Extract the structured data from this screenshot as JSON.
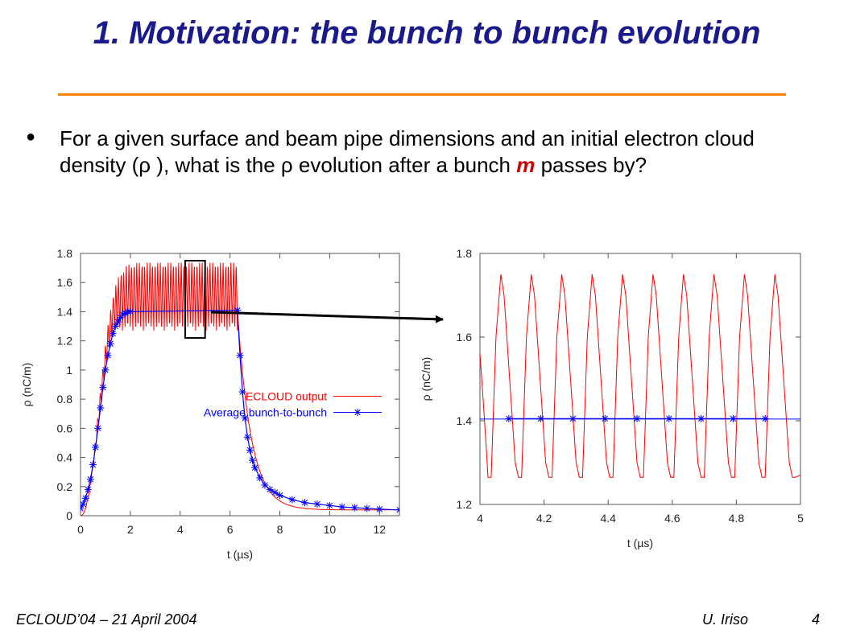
{
  "slide": {
    "title": "1. Motivation: the bunch to bunch evolution",
    "bullet": {
      "part1": "For a given surface and beam pipe dimensions and an initial electron cloud density (",
      "rho1": "ρ",
      "part2": " ), what is the ",
      "rho2": "ρ",
      "part3": " evolution after a bunch ",
      "m": "m",
      "part4": " passes by?"
    },
    "footer_left": "ECLOUD’04 – 21 April 2004",
    "footer_author": "U. Iriso",
    "footer_page": "4"
  },
  "colors": {
    "title": "#1a1a8c",
    "rule": "#ff7f00",
    "ecloud": "#ff0000",
    "average": "#0000ff"
  },
  "chart_data": [
    {
      "type": "line",
      "xlabel": "t (µs)",
      "ylabel": "ρ (nC/m)",
      "xlim": [
        0,
        12.8
      ],
      "ylim": [
        0,
        1.8
      ],
      "xticks": [
        "0",
        "2",
        "4",
        "6",
        "8",
        "10",
        "12"
      ],
      "yticks": [
        "0",
        "0.2",
        "0.4",
        "0.6",
        "0.8",
        "1",
        "1.2",
        "1.4",
        "1.6",
        "1.8"
      ],
      "legend_position": "center-right",
      "series": [
        {
          "name": "ECLOUD output",
          "style": "line",
          "color": "#ff0000",
          "envelope": {
            "rise_start": 0.0,
            "rise_end": 1.6,
            "flat_end": 6.3,
            "decay_end": 12.8,
            "flat_max": 1.75,
            "flat_min": 1.27,
            "decay_floor": 0.04,
            "period": 0.105
          }
        },
        {
          "name": "Average bunch-to-bunch",
          "style": "line+star",
          "color": "#0000ff",
          "points": [
            [
              0.0,
              0.05
            ],
            [
              0.1,
              0.08
            ],
            [
              0.2,
              0.12
            ],
            [
              0.3,
              0.18
            ],
            [
              0.4,
              0.25
            ],
            [
              0.5,
              0.35
            ],
            [
              0.6,
              0.47
            ],
            [
              0.7,
              0.6
            ],
            [
              0.8,
              0.74
            ],
            [
              0.9,
              0.88
            ],
            [
              1.0,
              1.0
            ],
            [
              1.1,
              1.1
            ],
            [
              1.2,
              1.18
            ],
            [
              1.3,
              1.25
            ],
            [
              1.4,
              1.3
            ],
            [
              1.5,
              1.33
            ],
            [
              1.6,
              1.36
            ],
            [
              1.7,
              1.38
            ],
            [
              1.8,
              1.39
            ],
            [
              1.9,
              1.4
            ],
            [
              2.0,
              1.4
            ],
            [
              6.3,
              1.41
            ],
            [
              6.4,
              1.1
            ],
            [
              6.5,
              0.85
            ],
            [
              6.6,
              0.67
            ],
            [
              6.7,
              0.54
            ],
            [
              6.8,
              0.45
            ],
            [
              6.9,
              0.38
            ],
            [
              7.0,
              0.33
            ],
            [
              7.2,
              0.26
            ],
            [
              7.4,
              0.21
            ],
            [
              7.6,
              0.18
            ],
            [
              7.8,
              0.16
            ],
            [
              8.0,
              0.14
            ],
            [
              8.5,
              0.11
            ],
            [
              9.0,
              0.09
            ],
            [
              9.5,
              0.08
            ],
            [
              10.0,
              0.07
            ],
            [
              10.5,
              0.06
            ],
            [
              11.0,
              0.055
            ],
            [
              11.5,
              0.05
            ],
            [
              12.0,
              0.045
            ],
            [
              12.8,
              0.04
            ]
          ]
        }
      ],
      "highlight_box": {
        "x": [
          4.2,
          5.0
        ],
        "y": [
          1.22,
          1.75
        ]
      }
    },
    {
      "type": "line",
      "xlabel": "t (µs)",
      "ylabel": "ρ (nC/m)",
      "xlim": [
        4,
        5
      ],
      "ylim": [
        1.2,
        1.8
      ],
      "xticks": [
        "4",
        "4.2",
        "4.4",
        "4.6",
        "4.8",
        "5"
      ],
      "yticks": [
        "1.2",
        "1.4",
        "1.6",
        "1.8"
      ],
      "series": [
        {
          "name": "ECLOUD output",
          "style": "line",
          "color": "#ff0000",
          "points": [
            [
              4.0,
              1.56
            ],
            [
              4.01,
              1.45
            ],
            [
              4.02,
              1.33
            ],
            [
              4.025,
              1.265
            ],
            [
              4.035,
              1.265
            ],
            [
              4.05,
              1.6
            ],
            [
              4.065,
              1.75
            ],
            [
              4.075,
              1.7
            ],
            [
              4.11,
              1.3
            ],
            [
              4.12,
              1.265
            ],
            [
              4.13,
              1.265
            ],
            [
              4.145,
              1.6
            ],
            [
              4.16,
              1.75
            ],
            [
              4.17,
              1.7
            ],
            [
              4.205,
              1.3
            ],
            [
              4.215,
              1.265
            ],
            [
              4.225,
              1.265
            ],
            [
              4.24,
              1.6
            ],
            [
              4.255,
              1.75
            ],
            [
              4.265,
              1.7
            ],
            [
              4.3,
              1.3
            ],
            [
              4.31,
              1.265
            ],
            [
              4.32,
              1.265
            ],
            [
              4.335,
              1.6
            ],
            [
              4.35,
              1.75
            ],
            [
              4.36,
              1.7
            ],
            [
              4.395,
              1.3
            ],
            [
              4.405,
              1.265
            ],
            [
              4.415,
              1.265
            ],
            [
              4.43,
              1.6
            ],
            [
              4.445,
              1.75
            ],
            [
              4.455,
              1.7
            ],
            [
              4.49,
              1.3
            ],
            [
              4.5,
              1.265
            ],
            [
              4.51,
              1.265
            ],
            [
              4.525,
              1.6
            ],
            [
              4.54,
              1.75
            ],
            [
              4.55,
              1.7
            ],
            [
              4.585,
              1.3
            ],
            [
              4.595,
              1.265
            ],
            [
              4.605,
              1.265
            ],
            [
              4.62,
              1.6
            ],
            [
              4.635,
              1.75
            ],
            [
              4.645,
              1.7
            ],
            [
              4.68,
              1.3
            ],
            [
              4.69,
              1.265
            ],
            [
              4.7,
              1.265
            ],
            [
              4.715,
              1.6
            ],
            [
              4.73,
              1.75
            ],
            [
              4.74,
              1.7
            ],
            [
              4.775,
              1.3
            ],
            [
              4.785,
              1.265
            ],
            [
              4.795,
              1.265
            ],
            [
              4.81,
              1.6
            ],
            [
              4.825,
              1.75
            ],
            [
              4.835,
              1.7
            ],
            [
              4.87,
              1.3
            ],
            [
              4.88,
              1.265
            ],
            [
              4.89,
              1.265
            ],
            [
              4.905,
              1.6
            ],
            [
              4.92,
              1.75
            ],
            [
              4.93,
              1.7
            ],
            [
              4.965,
              1.3
            ],
            [
              4.975,
              1.265
            ],
            [
              4.985,
              1.265
            ],
            [
              5.0,
              1.27
            ]
          ]
        },
        {
          "name": "Average bunch-to-bunch",
          "style": "line+star",
          "color": "#0000ff",
          "line_y": 1.404,
          "points": [
            [
              4.09,
              1.405
            ],
            [
              4.19,
              1.405
            ],
            [
              4.29,
              1.405
            ],
            [
              4.39,
              1.405
            ],
            [
              4.49,
              1.405
            ],
            [
              4.59,
              1.405
            ],
            [
              4.69,
              1.405
            ],
            [
              4.79,
              1.405
            ],
            [
              4.89,
              1.405
            ]
          ]
        }
      ]
    }
  ]
}
